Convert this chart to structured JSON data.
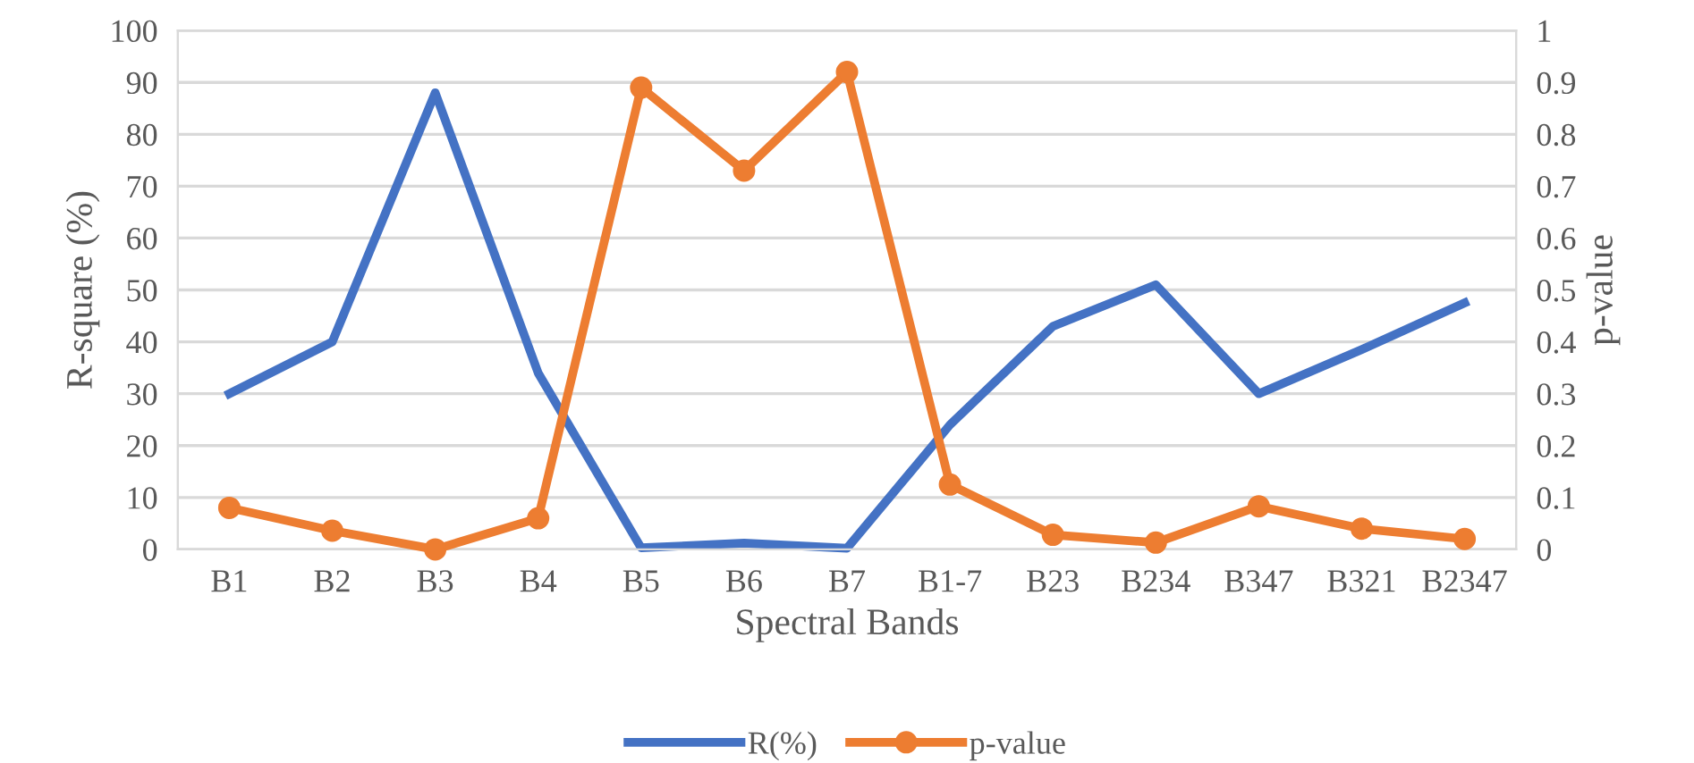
{
  "chart_data": {
    "type": "line",
    "xlabel": "Spectral Bands",
    "ylabel": "R-square (%)",
    "y2label": "p-value",
    "categories": [
      "B1",
      "B2",
      "B3",
      "B4",
      "B5",
      "B6",
      "B7",
      "B1-7",
      "B23",
      "B234",
      "B347",
      "B321",
      "B2347"
    ],
    "series": [
      {
        "name": "R(%)",
        "color": "#4472c4",
        "marker": "none",
        "values": [
          30,
          40,
          88,
          34,
          0.3,
          1.2,
          0.2,
          24,
          43,
          51,
          30,
          38.5,
          47.5
        ]
      },
      {
        "name": "p-value",
        "color": "#ed7d31",
        "marker": "circle",
        "axis": "y2",
        "values": [
          0.08,
          0.036,
          0,
          0.06,
          0.89,
          0.73,
          0.92,
          0.125,
          0.028,
          0.013,
          0.083,
          0.04,
          0.02
        ]
      }
    ],
    "ylim": [
      0,
      100
    ],
    "yticks": [
      0,
      10,
      20,
      30,
      40,
      50,
      60,
      70,
      80,
      90,
      100
    ],
    "y2lim": [
      0,
      1
    ],
    "y2ticks": [
      0,
      0.1,
      0.2,
      0.3,
      0.4,
      0.5,
      0.6,
      0.7,
      0.8,
      0.9,
      1
    ],
    "grid": "y",
    "legend": "bottom",
    "line_style": "solid"
  }
}
